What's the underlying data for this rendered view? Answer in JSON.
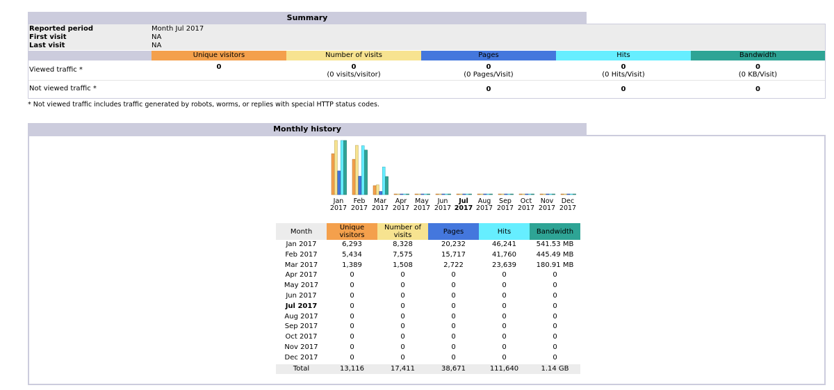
{
  "summary": {
    "title": "Summary",
    "info": [
      {
        "label": "Reported period",
        "value": "Month Jul 2017"
      },
      {
        "label": "First visit",
        "value": "NA"
      },
      {
        "label": "Last visit",
        "value": "NA"
      }
    ],
    "columns": [
      {
        "label": "Unique visitors",
        "color": "#f4a04c"
      },
      {
        "label": "Number of visits",
        "color": "#f7e390"
      },
      {
        "label": "Pages",
        "color": "#4477dd"
      },
      {
        "label": "Hits",
        "color": "#66eeff"
      },
      {
        "label": "Bandwidth",
        "color": "#2ea495"
      }
    ],
    "viewed": {
      "label": "Viewed traffic *",
      "unique": "0",
      "visits": "0",
      "visits_sub": "(0 visits/visitor)",
      "pages": "0",
      "pages_sub": "(0 Pages/Visit)",
      "hits": "0",
      "hits_sub": "(0 Hits/Visit)",
      "bandwidth": "0",
      "bandwidth_sub": "(0 KB/Visit)"
    },
    "not_viewed": {
      "label": "Not viewed traffic *",
      "pages": "0",
      "hits": "0",
      "bandwidth": "0"
    },
    "footnote": "* Not viewed traffic includes traffic generated by robots, worms, or replies with special HTTP status codes."
  },
  "history": {
    "title": "Monthly history",
    "headers": {
      "month": "Month",
      "unique_line1": "Unique",
      "unique_line2": "visitors",
      "visits_line1": "Number of",
      "visits_line2": "visits",
      "pages": "Pages",
      "hits": "Hits",
      "bandwidth": "Bandwidth"
    },
    "current_month": "Jul 2017",
    "rows": [
      {
        "month": "Jan 2017",
        "unique": "6,293",
        "visits": "8,328",
        "pages": "20,232",
        "hits": "46,241",
        "bandwidth": "541.53 MB"
      },
      {
        "month": "Feb 2017",
        "unique": "5,434",
        "visits": "7,575",
        "pages": "15,717",
        "hits": "41,760",
        "bandwidth": "445.49 MB"
      },
      {
        "month": "Mar 2017",
        "unique": "1,389",
        "visits": "1,508",
        "pages": "2,722",
        "hits": "23,639",
        "bandwidth": "180.91 MB"
      },
      {
        "month": "Apr 2017",
        "unique": "0",
        "visits": "0",
        "pages": "0",
        "hits": "0",
        "bandwidth": "0"
      },
      {
        "month": "May 2017",
        "unique": "0",
        "visits": "0",
        "pages": "0",
        "hits": "0",
        "bandwidth": "0"
      },
      {
        "month": "Jun 2017",
        "unique": "0",
        "visits": "0",
        "pages": "0",
        "hits": "0",
        "bandwidth": "0"
      },
      {
        "month": "Jul 2017",
        "unique": "0",
        "visits": "0",
        "pages": "0",
        "hits": "0",
        "bandwidth": "0"
      },
      {
        "month": "Aug 2017",
        "unique": "0",
        "visits": "0",
        "pages": "0",
        "hits": "0",
        "bandwidth": "0"
      },
      {
        "month": "Sep 2017",
        "unique": "0",
        "visits": "0",
        "pages": "0",
        "hits": "0",
        "bandwidth": "0"
      },
      {
        "month": "Oct 2017",
        "unique": "0",
        "visits": "0",
        "pages": "0",
        "hits": "0",
        "bandwidth": "0"
      },
      {
        "month": "Nov 2017",
        "unique": "0",
        "visits": "0",
        "pages": "0",
        "hits": "0",
        "bandwidth": "0"
      },
      {
        "month": "Dec 2017",
        "unique": "0",
        "visits": "0",
        "pages": "0",
        "hits": "0",
        "bandwidth": "0"
      }
    ],
    "total": {
      "label": "Total",
      "unique": "13,116",
      "visits": "17,411",
      "pages": "38,671",
      "hits": "111,640",
      "bandwidth": "1.14 GB"
    }
  },
  "chart_data": {
    "type": "bar",
    "categories": [
      "Jan",
      "Feb",
      "Mar",
      "Apr",
      "May",
      "Jun",
      "Jul",
      "Aug",
      "Sep",
      "Oct",
      "Nov",
      "Dec"
    ],
    "category_years": [
      "2017",
      "2017",
      "2017",
      "2017",
      "2017",
      "2017",
      "2017",
      "2017",
      "2017",
      "2017",
      "2017",
      "2017"
    ],
    "current_category": "Jul",
    "series": [
      {
        "name": "Unique visitors",
        "color": "#f4a04c",
        "values": [
          6293,
          5434,
          1389,
          0,
          0,
          0,
          0,
          0,
          0,
          0,
          0,
          0
        ]
      },
      {
        "name": "Number of visits",
        "color": "#f7e390",
        "values": [
          8328,
          7575,
          1508,
          0,
          0,
          0,
          0,
          0,
          0,
          0,
          0,
          0
        ]
      },
      {
        "name": "Pages",
        "color": "#4477dd",
        "values": [
          20232,
          15717,
          2722,
          0,
          0,
          0,
          0,
          0,
          0,
          0,
          0,
          0
        ]
      },
      {
        "name": "Hits",
        "color": "#66eeff",
        "values": [
          46241,
          41760,
          23639,
          0,
          0,
          0,
          0,
          0,
          0,
          0,
          0,
          0
        ]
      },
      {
        "name": "Bandwidth",
        "color": "#2ea495",
        "values": [
          541.53,
          445.49,
          180.91,
          0,
          0,
          0,
          0,
          0,
          0,
          0,
          0,
          0
        ]
      }
    ],
    "title": "",
    "xlabel": "",
    "ylabel": "",
    "grid": false
  }
}
